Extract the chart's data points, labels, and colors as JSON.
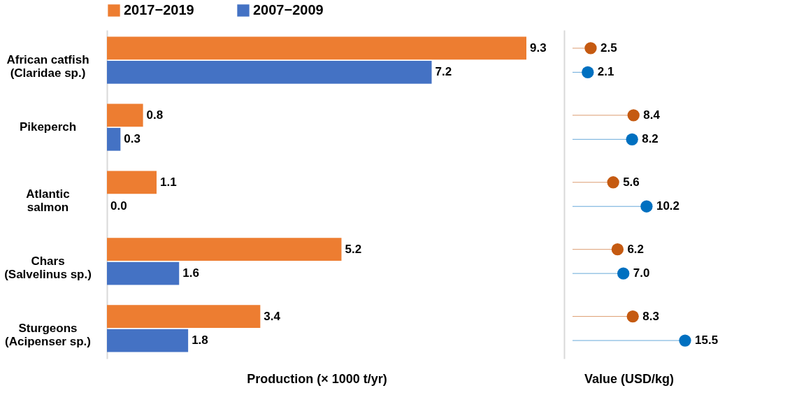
{
  "chart_data": [
    {
      "type": "bar",
      "orientation": "horizontal",
      "xlabel": "Production (× 1000 t/yr)",
      "legend": "top",
      "categories": [
        "African catfish\n(Claridae sp.)",
        "Pikeperch",
        "Atlantic\nsalmon",
        "Chars\n(Salvelinus sp.)",
        "Sturgeons\n(Acipenser sp.)"
      ],
      "series": [
        {
          "name": "2017−2019",
          "color": "#ed7d31",
          "values": [
            9.3,
            0.8,
            1.1,
            5.2,
            3.4
          ],
          "value_labels": [
            "9.3",
            "0.8",
            "1.1",
            "5.2",
            "3.4"
          ]
        },
        {
          "name": "2007−2009",
          "color": "#4472c4",
          "values": [
            7.2,
            0.3,
            0.0,
            1.6,
            1.8
          ],
          "value_labels": [
            "7.2",
            "0.3",
            "0.0",
            "1.6",
            "1.8"
          ]
        }
      ]
    },
    {
      "type": "lollipop",
      "orientation": "horizontal",
      "xlabel": "Value (USD/kg)",
      "tick_labels": false,
      "marker": "circle",
      "categories": [
        null,
        null,
        null,
        null,
        null
      ],
      "series": [
        {
          "color": "#c55a11",
          "values": [
            2.5,
            8.4,
            5.6,
            6.2,
            8.3
          ],
          "value_labels": [
            "2.5",
            "8.4",
            "5.6",
            "6.2",
            "8.3"
          ]
        },
        {
          "color": "#0070c0",
          "values": [
            2.1,
            8.2,
            10.2,
            7.0,
            15.5
          ],
          "value_labels": [
            "2.1",
            "8.2",
            "10.2",
            "7.0",
            "15.5"
          ]
        }
      ]
    }
  ]
}
